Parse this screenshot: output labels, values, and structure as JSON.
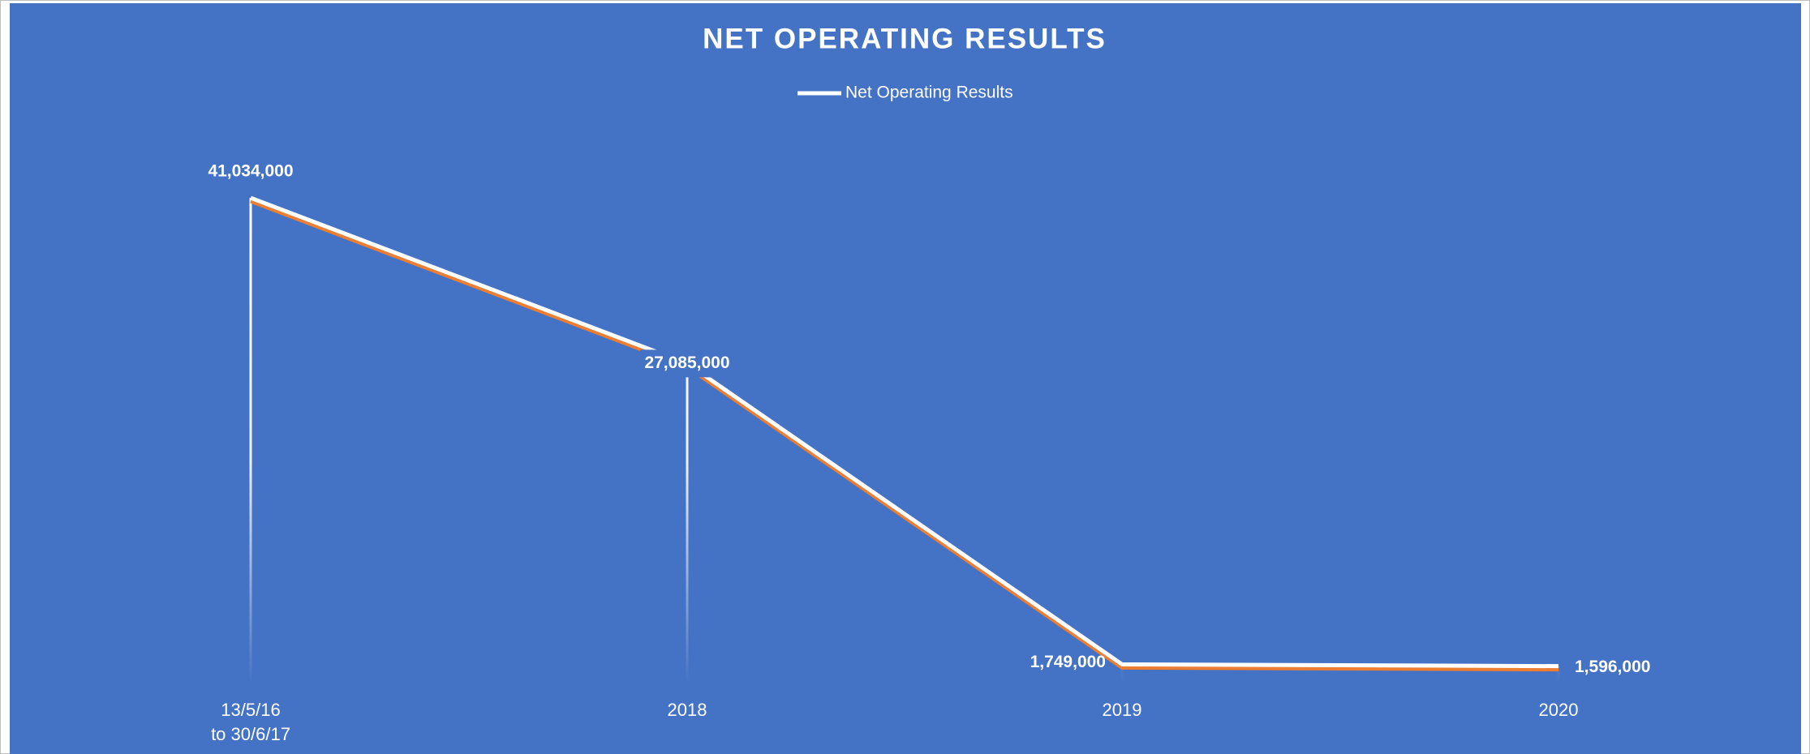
{
  "chart_data": {
    "type": "line",
    "title": "NET OPERATING RESULTS",
    "categories": [
      "13/5/16\nto 30/6/17",
      "2018",
      "2019",
      "2020"
    ],
    "series": [
      {
        "name": "Net Operating Results",
        "color": "#ffffff",
        "values": [
          41034000,
          27085000,
          1749000,
          1596000
        ],
        "value_labels": [
          "41,034,000",
          "27,085,000",
          "1,749,000",
          "1,596,000"
        ]
      }
    ],
    "ylim": [
      0,
      45000000
    ],
    "background": "#4472c4",
    "shadow_color": "#ed7d31",
    "drop_lines": true,
    "legend": "top"
  }
}
